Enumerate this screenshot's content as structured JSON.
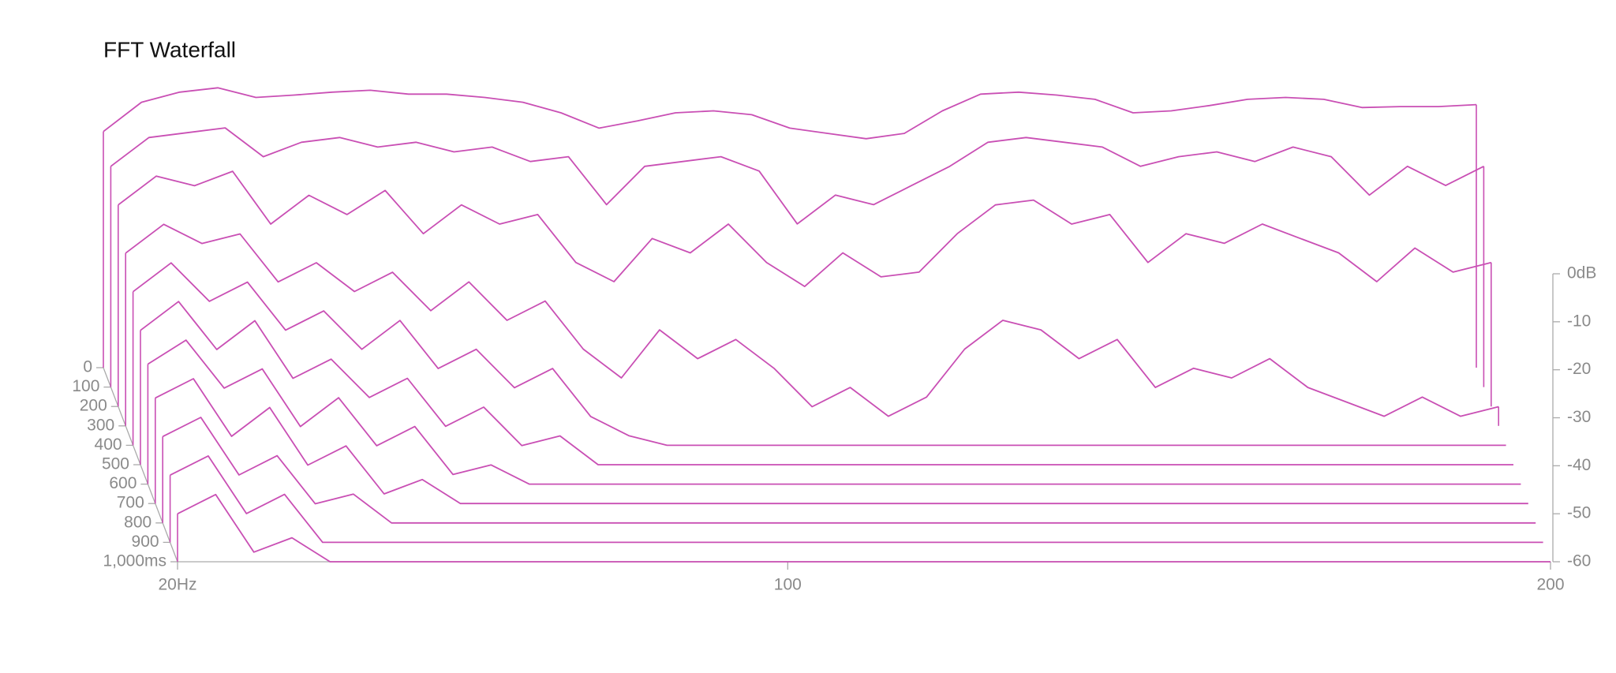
{
  "chart_data": {
    "type": "waterfall",
    "title": "FFT Waterfall",
    "color": "#c94fb4",
    "x": [
      20,
      25,
      30,
      35,
      40,
      45,
      50,
      55,
      60,
      65,
      70,
      75,
      80,
      85,
      90,
      95,
      100,
      105,
      110,
      115,
      120,
      125,
      130,
      135,
      140,
      145,
      150,
      155,
      160,
      165,
      170,
      175,
      180,
      185,
      190,
      195,
      200
    ],
    "xlim": [
      20,
      200
    ],
    "xticks": [
      {
        "value": 20,
        "label": "20Hz"
      },
      100,
      200
    ],
    "ylim": [
      -60,
      0
    ],
    "yticks": [
      {
        "value": 0,
        "label": "0dB"
      },
      -10,
      -20,
      -30,
      -40,
      -50,
      -60
    ],
    "zlim": [
      0,
      1000
    ],
    "zticks": [
      0,
      100,
      200,
      300,
      400,
      500,
      600,
      700,
      800,
      900,
      {
        "value": 1000,
        "label": "1,000ms"
      }
    ],
    "times": [
      0,
      100,
      200,
      300,
      400,
      500,
      600,
      700,
      800,
      900,
      1000
    ],
    "series": [
      {
        "values": [
          -10.8,
          -4.7,
          -2.6,
          -1.7,
          -3.7,
          -3.2,
          -2.6,
          -2.2,
          -3,
          -3,
          -3.7,
          -4.7,
          -6.9,
          -10.1,
          -8.6,
          -6.9,
          -6.5,
          -7.3,
          -10.1,
          -11.2,
          -12.3,
          -11.2,
          -6.5,
          -3,
          -2.6,
          -3.2,
          -4.1,
          -6.9,
          -6.5,
          -5.4,
          -4.1,
          -3.7,
          -4.1,
          -5.8,
          -5.6,
          -5.6,
          -5.2
        ]
      },
      {
        "values": [
          -14,
          -8,
          -7,
          -6,
          -12,
          -9,
          -8,
          -10,
          -9,
          -11,
          -10,
          -13,
          -12,
          -22,
          -14,
          -13,
          -12,
          -15,
          -26,
          -20,
          -22,
          -18,
          -14,
          -9,
          -8,
          -9,
          -10,
          -14,
          -12,
          -11,
          -13,
          -10,
          -12,
          -20,
          -14,
          -18,
          -14
        ]
      },
      {
        "values": [
          -18,
          -12,
          -14,
          -11,
          -22,
          -16,
          -20,
          -15,
          -24,
          -18,
          -22,
          -20,
          -30,
          -34,
          -25,
          -28,
          -22,
          -30,
          -35,
          -28,
          -33,
          -32,
          -24,
          -18,
          -17,
          -22,
          -20,
          -30,
          -24,
          -26,
          -22,
          -25,
          -28,
          -34,
          -27,
          -32,
          -30
        ]
      },
      {
        "values": [
          -24,
          -18,
          -22,
          -20,
          -30,
          -26,
          -32,
          -28,
          -36,
          -30,
          -38,
          -34,
          -44,
          -50,
          -40,
          -46,
          -42,
          -48,
          -56,
          -52,
          -58,
          -54,
          -44,
          -38,
          -40,
          -46,
          -42,
          -52,
          -48,
          -50,
          -46,
          -52,
          -55,
          -58,
          -54,
          -58,
          -56
        ]
      },
      {
        "values": [
          -28,
          -22,
          -30,
          -26,
          -36,
          -32,
          -40,
          -34,
          -44,
          -40,
          -48,
          -44,
          -54,
          -58,
          -60,
          -60,
          -60,
          -60,
          -60,
          -60,
          -60,
          -60,
          -60,
          -60,
          -60,
          -60,
          -60,
          -60,
          -60,
          -60,
          -60,
          -60,
          -60,
          -60,
          -60,
          -60,
          -60
        ]
      },
      {
        "values": [
          -32,
          -26,
          -36,
          -30,
          -42,
          -38,
          -46,
          -42,
          -52,
          -48,
          -56,
          -54,
          -60,
          -60,
          -60,
          -60,
          -60,
          -60,
          -60,
          -60,
          -60,
          -60,
          -60,
          -60,
          -60,
          -60,
          -60,
          -60,
          -60,
          -60,
          -60,
          -60,
          -60,
          -60,
          -60,
          -60,
          -60
        ]
      },
      {
        "values": [
          -35,
          -30,
          -40,
          -36,
          -48,
          -42,
          -52,
          -48,
          -58,
          -56,
          -60,
          -60,
          -60,
          -60,
          -60,
          -60,
          -60,
          -60,
          -60,
          -60,
          -60,
          -60,
          -60,
          -60,
          -60,
          -60,
          -60,
          -60,
          -60,
          -60,
          -60,
          -60,
          -60,
          -60,
          -60,
          -60,
          -60
        ]
      },
      {
        "values": [
          -38,
          -34,
          -46,
          -40,
          -52,
          -48,
          -58,
          -55,
          -60,
          -60,
          -60,
          -60,
          -60,
          -60,
          -60,
          -60,
          -60,
          -60,
          -60,
          -60,
          -60,
          -60,
          -60,
          -60,
          -60,
          -60,
          -60,
          -60,
          -60,
          -60,
          -60,
          -60,
          -60,
          -60,
          -60,
          -60,
          -60
        ]
      },
      {
        "values": [
          -42,
          -38,
          -50,
          -46,
          -56,
          -54,
          -60,
          -60,
          -60,
          -60,
          -60,
          -60,
          -60,
          -60,
          -60,
          -60,
          -60,
          -60,
          -60,
          -60,
          -60,
          -60,
          -60,
          -60,
          -60,
          -60,
          -60,
          -60,
          -60,
          -60,
          -60,
          -60,
          -60,
          -60,
          -60,
          -60,
          -60
        ]
      },
      {
        "values": [
          -46,
          -42,
          -54,
          -50,
          -60,
          -60,
          -60,
          -60,
          -60,
          -60,
          -60,
          -60,
          -60,
          -60,
          -60,
          -60,
          -60,
          -60,
          -60,
          -60,
          -60,
          -60,
          -60,
          -60,
          -60,
          -60,
          -60,
          -60,
          -60,
          -60,
          -60,
          -60,
          -60,
          -60,
          -60,
          -60,
          -60
        ]
      },
      {
        "values": [
          -50,
          -46,
          -58,
          -55,
          -60,
          -60,
          -60,
          -60,
          -60,
          -60,
          -60,
          -60,
          -60,
          -60,
          -60,
          -60,
          -60,
          -60,
          -60,
          -60,
          -60,
          -60,
          -60,
          -60,
          -60,
          -60,
          -60,
          -60,
          -60,
          -60,
          -60,
          -60,
          -60,
          -60,
          -60,
          -60,
          -60
        ]
      }
    ]
  }
}
